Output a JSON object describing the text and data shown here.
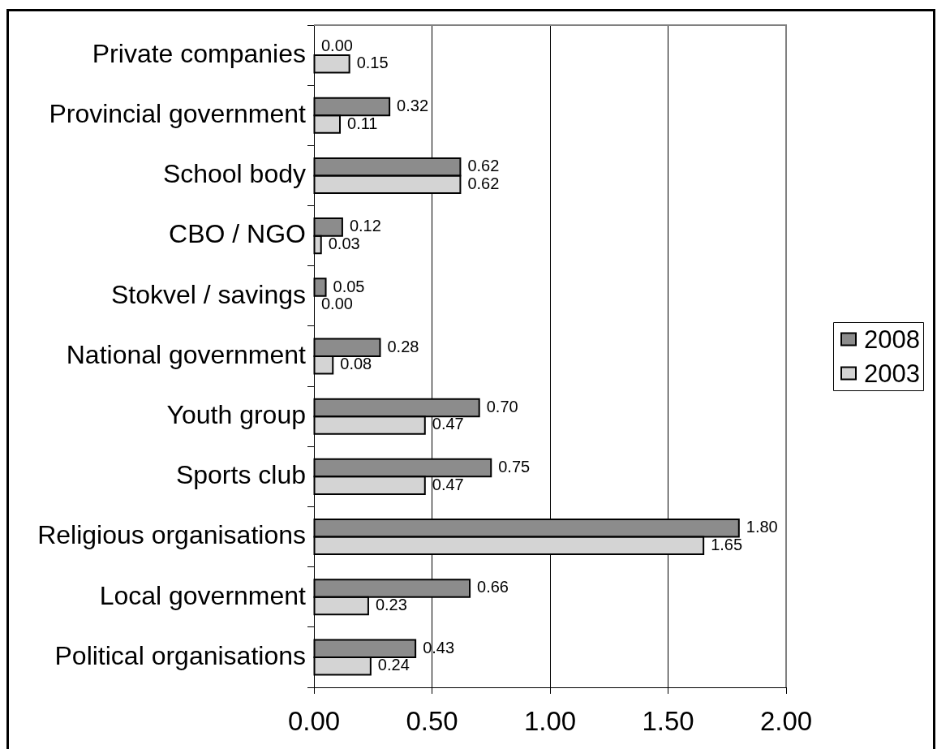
{
  "chart_data": {
    "type": "bar",
    "orientation": "horizontal",
    "categories": [
      "Private companies",
      "Provincial government",
      "School body",
      "CBO / NGO",
      "Stokvel / savings",
      "National government",
      "Youth group",
      "Sports club",
      "Religious organisations",
      "Local government",
      "Political organisations"
    ],
    "series": [
      {
        "name": "2008",
        "color": "#8c8c8c",
        "values": [
          0,
          0.32,
          0.62,
          0.12,
          0.05,
          0.28,
          0.7,
          0.75,
          1.8,
          0.66,
          0.43
        ],
        "value_labels": [
          "0.00",
          "0.32",
          "0.62",
          "0.12",
          "0.05",
          "0.28",
          "0.70",
          "0.75",
          "1.80",
          "0.66",
          "0.43"
        ]
      },
      {
        "name": "2003",
        "color": "#d4d4d4",
        "values": [
          0.15,
          0.11,
          0.62,
          0.03,
          0,
          0.08,
          0.47,
          0.47,
          1.65,
          0.23,
          0.24
        ],
        "value_labels": [
          "0.15",
          "0.11",
          "0.62",
          "0.03",
          "0.00",
          "0.08",
          "0.47",
          "0.47",
          "1.65",
          "0.23",
          "0.24"
        ]
      }
    ],
    "xlim": [
      0,
      2
    ],
    "xticks": [
      {
        "value": 0,
        "label": "0.00"
      },
      {
        "value": 0.5,
        "label": "0.50"
      },
      {
        "value": 1,
        "label": "1.00"
      },
      {
        "value": 1.5,
        "label": "1.50"
      },
      {
        "value": 2,
        "label": "2.00"
      }
    ],
    "grid": "x",
    "legend": "right"
  }
}
